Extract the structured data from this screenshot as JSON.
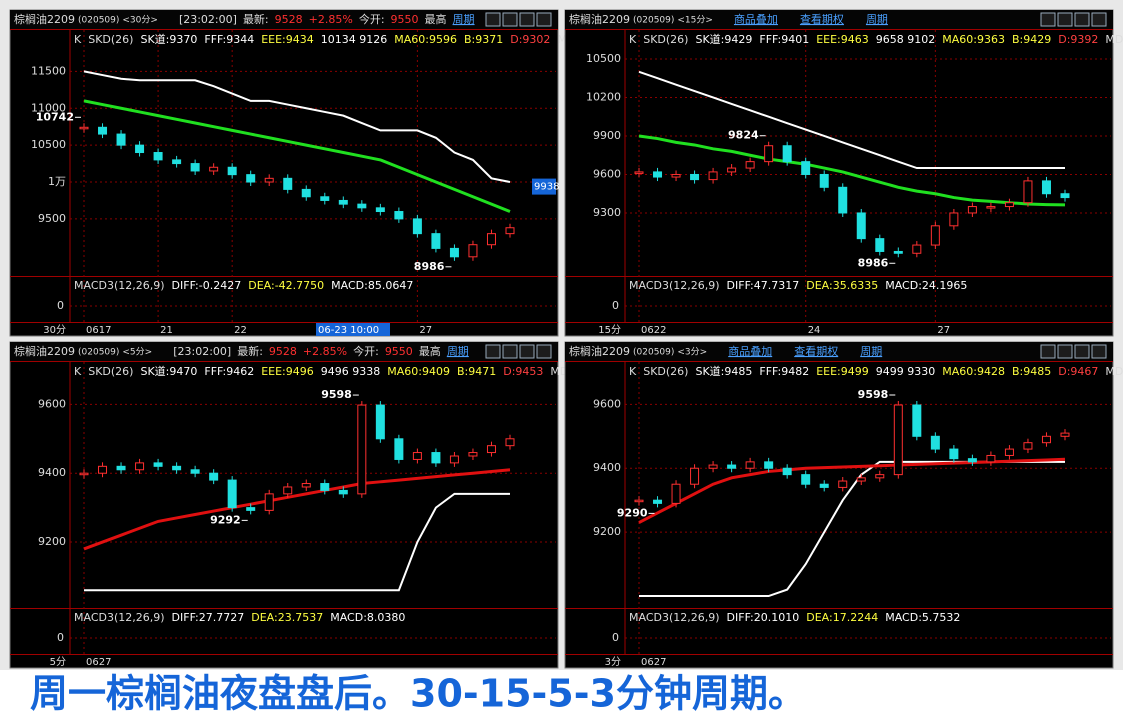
{
  "panels": [
    {
      "header": {
        "title": "棕榈油2209",
        "code": "(020509)",
        "period": "<30分>",
        "items": [
          {
            "text": "[23:02:00]",
            "color": "#dddddd"
          },
          {
            "text": "最新:",
            "color": "#dddddd"
          },
          {
            "text": "9528",
            "color": "#ff3030"
          },
          {
            "text": "+2.85%",
            "color": "#ff3030"
          },
          {
            "text": "今开:",
            "color": "#dddddd"
          },
          {
            "text": "9550",
            "color": "#ff3030"
          },
          {
            "text": "最高",
            "color": "#dddddd"
          },
          {
            "text": "周期",
            "color": "#4aa0ff"
          }
        ]
      },
      "indicator": [
        {
          "text": "K",
          "color": "#dddddd"
        },
        {
          "text": "SKD(26)",
          "color": "#dddddd"
        },
        {
          "text": "SK道:9370",
          "color": "#ffffff"
        },
        {
          "text": "FFF:9344",
          "color": "#ffffff"
        },
        {
          "text": "EEE:9434",
          "color": "#ffff40"
        },
        {
          "text": "10134 9126",
          "color": "#ffffff"
        },
        {
          "text": "MA60:9596",
          "color": "#ffff40"
        },
        {
          "text": "B:9371",
          "color": "#ffff40"
        },
        {
          "text": "D:9302",
          "color": "#ff4040"
        },
        {
          "text": "MD:",
          "color": "#dddddd"
        }
      ],
      "macd": {
        "items": [
          {
            "text": "MACD3(12,26,9)",
            "color": "#dddddd"
          },
          {
            "text": "DIFF:-0.2427",
            "color": "#ffffff"
          },
          {
            "text": "DEA:-42.7750",
            "color": "#ffff40"
          },
          {
            "text": "MACD:85.0647",
            "color": "#ffffff"
          }
        ],
        "yticks": [
          0
        ]
      },
      "chart_data": {
        "type": "stock",
        "period_label": "30分",
        "cursor_label": "06-23 10:00",
        "price_box": 9938,
        "ylim": [
          8780,
          11790
        ],
        "yticks": [
          11500,
          11000,
          10500,
          {
            "value": 10000,
            "label": "1万"
          },
          9500
        ],
        "categories": [
          "0617",
          null,
          null,
          null,
          "21",
          null,
          null,
          null,
          "22",
          null,
          null,
          null,
          null,
          null,
          null,
          null,
          null,
          null,
          "27",
          null,
          null,
          null,
          null,
          null
        ],
        "close": [
          10742,
          10650,
          10500,
          10400,
          10300,
          10250,
          10150,
          10200,
          10100,
          10000,
          10050,
          9900,
          9800,
          9750,
          9700,
          9650,
          9600,
          9500,
          9300,
          9100,
          8986,
          9150,
          9300,
          9380
        ],
        "ma": {
          "color": "#20e020",
          "values": [
            11100,
            11050,
            11000,
            10950,
            10900,
            10850,
            10800,
            10750,
            10700,
            10650,
            10600,
            10550,
            10500,
            10450,
            10400,
            10350,
            10300,
            10200,
            10100,
            10000,
            9900,
            9800,
            9700,
            9600
          ]
        },
        "band": {
          "color": "#ffffff",
          "values": [
            11500,
            11450,
            11400,
            11380,
            11380,
            11380,
            11380,
            11300,
            11200,
            11100,
            11100,
            11050,
            11000,
            10950,
            10900,
            10800,
            10700,
            10700,
            10700,
            10600,
            10400,
            10300,
            10050,
            10000
          ]
        },
        "labels": [
          0,
          20
        ]
      }
    },
    {
      "header": {
        "title": "棕榈油2209",
        "code": "(020509)",
        "period": "<15分>",
        "items": [
          {
            "text": "商品叠加",
            "color": "#4aa0ff"
          },
          {
            "text": "查看期权",
            "color": "#4aa0ff"
          },
          {
            "text": "周期",
            "color": "#4aa0ff"
          }
        ]
      },
      "indicator": [
        {
          "text": "K",
          "color": "#dddddd"
        },
        {
          "text": "SKD(26)",
          "color": "#dddddd"
        },
        {
          "text": "SK道:9429",
          "color": "#ffffff"
        },
        {
          "text": "FFF:9401",
          "color": "#ffffff"
        },
        {
          "text": "EEE:9463",
          "color": "#ffff40"
        },
        {
          "text": "9658 9102",
          "color": "#ffffff"
        },
        {
          "text": "MA60:9363",
          "color": "#ffff40"
        },
        {
          "text": "B:9429",
          "color": "#ffff40"
        },
        {
          "text": "D:9392",
          "color": "#ff4040"
        },
        {
          "text": "MD:",
          "color": "#dddddd"
        }
      ],
      "macd": {
        "items": [
          {
            "text": "MACD3(12,26,9)",
            "color": "#dddddd"
          },
          {
            "text": "DIFF:47.7317",
            "color": "#ffffff"
          },
          {
            "text": "DEA:35.6335",
            "color": "#ffff40"
          },
          {
            "text": "MACD:24.1965",
            "color": "#ffffff"
          }
        ],
        "yticks": [
          0
        ]
      },
      "chart_data": {
        "type": "stock",
        "period_label": "15分",
        "ylim": [
          8840,
          10570
        ],
        "yticks": [
          10500,
          10200,
          9900,
          9600,
          9300
        ],
        "categories": [
          "0622",
          null,
          null,
          null,
          null,
          null,
          null,
          null,
          null,
          "24",
          null,
          null,
          null,
          null,
          null,
          null,
          "27",
          null,
          null,
          null,
          null,
          null,
          null,
          null
        ],
        "close": [
          9620,
          9580,
          9600,
          9560,
          9620,
          9650,
          9700,
          9824,
          9700,
          9600,
          9500,
          9300,
          9100,
          9000,
          8986,
          9050,
          9200,
          9300,
          9350,
          9350,
          9380,
          9550,
          9450,
          9420
        ],
        "ma": {
          "color": "#20e020",
          "values": [
            9900,
            9880,
            9850,
            9830,
            9800,
            9780,
            9750,
            9720,
            9700,
            9680,
            9650,
            9620,
            9580,
            9540,
            9500,
            9470,
            9450,
            9420,
            9400,
            9390,
            9380,
            9370,
            9365,
            9363
          ]
        },
        "band": {
          "color": "#ffffff",
          "values": [
            10400,
            10350,
            10300,
            10250,
            10200,
            10150,
            10100,
            10050,
            10000,
            9950,
            9900,
            9850,
            9800,
            9750,
            9700,
            9650,
            9650,
            9650,
            9650,
            9650,
            9650,
            9650,
            9650,
            9650
          ]
        },
        "labels": [
          7,
          14
        ]
      }
    },
    {
      "header": {
        "title": "棕榈油2209",
        "code": "(020509)",
        "period": "<5分>",
        "items": [
          {
            "text": "[23:02:00]",
            "color": "#dddddd"
          },
          {
            "text": "最新:",
            "color": "#dddddd"
          },
          {
            "text": "9528",
            "color": "#ff3030"
          },
          {
            "text": "+2.85%",
            "color": "#ff3030"
          },
          {
            "text": "今开:",
            "color": "#dddddd"
          },
          {
            "text": "9550",
            "color": "#ff3030"
          },
          {
            "text": "最高",
            "color": "#dddddd"
          },
          {
            "text": "周期",
            "color": "#4aa0ff"
          }
        ]
      },
      "indicator": [
        {
          "text": "K",
          "color": "#dddddd"
        },
        {
          "text": "SKD(26)",
          "color": "#dddddd"
        },
        {
          "text": "SK道:9470",
          "color": "#ffffff"
        },
        {
          "text": "FFF:9462",
          "color": "#ffffff"
        },
        {
          "text": "EEE:9496",
          "color": "#ffff40"
        },
        {
          "text": "9496 9338",
          "color": "#ffffff"
        },
        {
          "text": "MA60:9409",
          "color": "#ffff40"
        },
        {
          "text": "B:9471",
          "color": "#ffff40"
        },
        {
          "text": "D:9453",
          "color": "#ff4040"
        },
        {
          "text": "MD:",
          "color": "#dddddd"
        }
      ],
      "macd": {
        "items": [
          {
            "text": "MACD3(12,26,9)",
            "color": "#dddddd"
          },
          {
            "text": "DIFF:27.7727",
            "color": "#ffffff"
          },
          {
            "text": "DEA:23.7537",
            "color": "#ffff40"
          },
          {
            "text": "MACD:8.0380",
            "color": "#ffffff"
          }
        ],
        "yticks": [
          0
        ]
      },
      "chart_data": {
        "type": "stock",
        "period_label": "5分",
        "ylim": [
          9020,
          9665
        ],
        "yticks": [
          9600,
          9400,
          9200
        ],
        "categories": [
          "0627",
          null,
          null,
          null,
          null,
          null,
          null,
          null,
          null,
          null,
          null,
          null,
          null,
          null,
          null,
          null,
          null,
          null,
          null,
          null,
          null,
          null,
          null,
          null
        ],
        "close": [
          9400,
          9420,
          9410,
          9430,
          9420,
          9410,
          9400,
          9380,
          9300,
          9292,
          9340,
          9360,
          9370,
          9350,
          9340,
          9598,
          9500,
          9440,
          9460,
          9430,
          9450,
          9460,
          9480,
          9500
        ],
        "ma": {
          "color": "#e01010",
          "values": [
            9180,
            9200,
            9220,
            9240,
            9260,
            9270,
            9280,
            9290,
            9300,
            9310,
            9320,
            9330,
            9340,
            9350,
            9360,
            9370,
            9375,
            9380,
            9385,
            9390,
            9395,
            9400,
            9405,
            9410
          ]
        },
        "band": {
          "color": "#ffffff",
          "values": [
            9060,
            9060,
            9060,
            9060,
            9060,
            9060,
            9060,
            9060,
            9060,
            9060,
            9060,
            9060,
            9060,
            9060,
            9060,
            9060,
            9060,
            9060,
            9200,
            9300,
            9340,
            9340,
            9340,
            9340
          ]
        },
        "labels": [
          15,
          9
        ]
      }
    },
    {
      "header": {
        "title": "棕榈油2209",
        "code": "(020509)",
        "period": "<3分>",
        "items": [
          {
            "text": "商品叠加",
            "color": "#4aa0ff"
          },
          {
            "text": "查看期权",
            "color": "#4aa0ff"
          },
          {
            "text": "周期",
            "color": "#4aa0ff"
          }
        ]
      },
      "indicator": [
        {
          "text": "K",
          "color": "#dddddd"
        },
        {
          "text": "SKD(26)",
          "color": "#dddddd"
        },
        {
          "text": "SK道:9485",
          "color": "#ffffff"
        },
        {
          "text": "FFF:9482",
          "color": "#ffffff"
        },
        {
          "text": "EEE:9499",
          "color": "#ffff40"
        },
        {
          "text": "9499 9330",
          "color": "#ffffff"
        },
        {
          "text": "MA60:9428",
          "color": "#ffff40"
        },
        {
          "text": "B:9485",
          "color": "#ffff40"
        },
        {
          "text": "D:9467",
          "color": "#ff4040"
        },
        {
          "text": "MD:",
          "color": "#dddddd"
        }
      ],
      "macd": {
        "items": [
          {
            "text": "MACD3(12,26,9)",
            "color": "#dddddd"
          },
          {
            "text": "DIFF:20.1010",
            "color": "#ffffff"
          },
          {
            "text": "DEA:17.2244",
            "color": "#ffff40"
          },
          {
            "text": "MACD:5.7532",
            "color": "#ffffff"
          }
        ],
        "yticks": [
          0
        ]
      },
      "chart_data": {
        "type": "stock",
        "period_label": "3分",
        "ylim": [
          8975,
          9670
        ],
        "yticks": [
          9600,
          9400,
          9200
        ],
        "categories": [
          "0627",
          null,
          null,
          null,
          null,
          null,
          null,
          null,
          null,
          null,
          null,
          null,
          null,
          null,
          null,
          null,
          null,
          null,
          null,
          null,
          null,
          null,
          null,
          null
        ],
        "close": [
          9300,
          9290,
          9350,
          9400,
          9410,
          9400,
          9420,
          9400,
          9380,
          9350,
          9340,
          9360,
          9370,
          9380,
          9598,
          9500,
          9460,
          9430,
          9420,
          9440,
          9460,
          9480,
          9500,
          9510
        ],
        "ma": {
          "color": "#e01010",
          "values": [
            9230,
            9260,
            9290,
            9320,
            9350,
            9370,
            9380,
            9390,
            9395,
            9400,
            9402,
            9404,
            9406,
            9408,
            9410,
            9412,
            9414,
            9416,
            9418,
            9420,
            9422,
            9424,
            9426,
            9428
          ]
        },
        "band": {
          "color": "#ffffff",
          "values": [
            9000,
            9000,
            9000,
            9000,
            9000,
            9000,
            9000,
            9000,
            9020,
            9100,
            9200,
            9300,
            9380,
            9420,
            9420,
            9420,
            9420,
            9420,
            9420,
            9420,
            9420,
            9420,
            9420,
            9420
          ]
        },
        "labels": [
          14,
          1
        ]
      }
    }
  ],
  "caption": "周一棕榈油夜盘盘后。30-15-5-3分钟周期。"
}
